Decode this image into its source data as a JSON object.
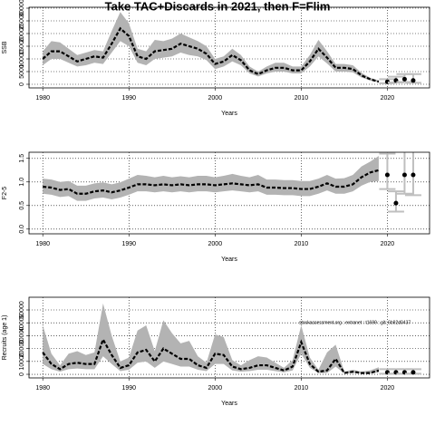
{
  "chart_data": [
    {
      "type": "line",
      "title": "Take TAC+Discards in 2021, then F=Flim",
      "x_label": "Years",
      "y_label": "SSB",
      "xlim": [
        1978.4,
        2024.9
      ],
      "xticks": [
        1980,
        1990,
        2000,
        2010,
        2020
      ],
      "ylim": [
        -1430,
        30360
      ],
      "yticks": [
        0,
        5000,
        10000,
        15000,
        20000,
        25000,
        30000
      ],
      "grid": true,
      "color": "#000000",
      "band_color": "#b3b3b3",
      "x": [
        1980,
        1981,
        1982,
        1983,
        1984,
        1985,
        1986,
        1987,
        1988,
        1989,
        1990,
        1991,
        1992,
        1993,
        1994,
        1995,
        1996,
        1997,
        1998,
        1999,
        2000,
        2001,
        2002,
        2003,
        2004,
        2005,
        2006,
        2007,
        2008,
        2009,
        2010,
        2011,
        2012,
        2013,
        2014,
        2015,
        2016,
        2017,
        2018,
        2019
      ],
      "values": [
        10000,
        13000,
        13000,
        11000,
        9000,
        10000,
        11000,
        10500,
        16000,
        22000,
        19000,
        11000,
        10000,
        13000,
        13500,
        14000,
        16000,
        15000,
        14000,
        12000,
        8000,
        9000,
        11500,
        9500,
        5500,
        4000,
        5500,
        6500,
        6500,
        5500,
        5500,
        9000,
        14000,
        10500,
        6500,
        6500,
        6000,
        3500,
        2000,
        1000
      ],
      "upper": [
        13000,
        17000,
        16500,
        14000,
        11500,
        12500,
        13500,
        13000,
        21000,
        28500,
        24000,
        14000,
        13000,
        17500,
        17000,
        18000,
        20000,
        18500,
        17000,
        15000,
        10000,
        11000,
        14000,
        11500,
        7000,
        5000,
        7000,
        8500,
        8500,
        7000,
        7000,
        11500,
        17500,
        13000,
        8000,
        8000,
        7500,
        4500,
        2600,
        1500
      ],
      "lower": [
        7500,
        10000,
        10000,
        8500,
        7000,
        7500,
        8500,
        8000,
        12500,
        17000,
        15000,
        8500,
        7500,
        10000,
        10500,
        11000,
        12500,
        11500,
        11000,
        9500,
        6000,
        7000,
        9000,
        7500,
        4300,
        3100,
        4300,
        5000,
        5000,
        4300,
        4300,
        7000,
        11000,
        8200,
        5000,
        5000,
        4700,
        2700,
        1500,
        700
      ],
      "points": {
        "x": [
          2020,
          2021,
          2022,
          2023
        ],
        "values": [
          1000,
          1500,
          2000,
          1500
        ],
        "lower": [
          400,
          700,
          900,
          600
        ],
        "upper": [
          2000,
          3000,
          4000,
          4000
        ]
      }
    },
    {
      "type": "line",
      "x_label": "Years",
      "y_label": "F2-5",
      "xlim": [
        1978.4,
        2024.9
      ],
      "xticks": [
        1980,
        1990,
        2000,
        2010,
        2020
      ],
      "ylim": [
        -0.1,
        1.63
      ],
      "yticks": [
        {
          "value": 0,
          "label": "0.0"
        },
        {
          "value": 0.5,
          "label": "0.5"
        },
        {
          "value": 1,
          "label": "1.0"
        },
        {
          "value": 1.5,
          "label": "1.5"
        }
      ],
      "grid": true,
      "color": "#000000",
      "band_color": "#b3b3b3",
      "x": [
        1980,
        1981,
        1982,
        1983,
        1984,
        1985,
        1986,
        1987,
        1988,
        1989,
        1990,
        1991,
        1992,
        1993,
        1994,
        1995,
        1996,
        1997,
        1998,
        1999,
        2000,
        2001,
        2002,
        2003,
        2004,
        2005,
        2006,
        2007,
        2008,
        2009,
        2010,
        2011,
        2012,
        2013,
        2014,
        2015,
        2016,
        2017,
        2018,
        2019
      ],
      "values": [
        0.9,
        0.88,
        0.83,
        0.85,
        0.75,
        0.75,
        0.8,
        0.82,
        0.78,
        0.82,
        0.88,
        0.95,
        0.95,
        0.93,
        0.95,
        0.93,
        0.95,
        0.93,
        0.95,
        0.95,
        0.93,
        0.95,
        0.97,
        0.95,
        0.93,
        0.95,
        0.88,
        0.88,
        0.87,
        0.87,
        0.85,
        0.85,
        0.9,
        0.97,
        0.9,
        0.9,
        0.95,
        1.1,
        1.2,
        1.25
      ],
      "upper": [
        1.07,
        1.05,
        1.0,
        1.02,
        0.92,
        0.92,
        0.97,
        0.99,
        0.95,
        0.99,
        1.07,
        1.15,
        1.13,
        1.1,
        1.13,
        1.1,
        1.12,
        1.1,
        1.13,
        1.13,
        1.1,
        1.13,
        1.17,
        1.13,
        1.1,
        1.15,
        1.05,
        1.05,
        1.04,
        1.04,
        1.02,
        1.02,
        1.07,
        1.15,
        1.07,
        1.08,
        1.15,
        1.33,
        1.43,
        1.55
      ],
      "lower": [
        0.75,
        0.73,
        0.68,
        0.7,
        0.6,
        0.6,
        0.65,
        0.67,
        0.63,
        0.67,
        0.73,
        0.8,
        0.8,
        0.78,
        0.8,
        0.78,
        0.8,
        0.78,
        0.8,
        0.8,
        0.78,
        0.8,
        0.82,
        0.8,
        0.78,
        0.8,
        0.73,
        0.73,
        0.72,
        0.72,
        0.7,
        0.7,
        0.75,
        0.82,
        0.75,
        0.75,
        0.8,
        0.92,
        1.0,
        1.02
      ],
      "points": {
        "x": [
          2020,
          2021,
          2022,
          2023
        ],
        "values": [
          1.15,
          0.55,
          1.15,
          1.15
        ],
        "lower": [
          0.85,
          0.37,
          0.75,
          0.72
        ],
        "upper": [
          1.6,
          0.8,
          1.65,
          1.65
        ]
      }
    },
    {
      "type": "line",
      "x_label": "Years",
      "y_label": "Recruits (age 1)",
      "annotation": "stockassessment.org : extranet : t1699 : git: 6b92d0437",
      "xlim": [
        1978.4,
        2024.9
      ],
      "xticks": [
        1980,
        1990,
        2000,
        2010,
        2020
      ],
      "ylim": [
        -2800,
        59860
      ],
      "yticks": [
        0,
        10000,
        20000,
        30000,
        40000,
        50000
      ],
      "grid": true,
      "color": "#000000",
      "band_color": "#b3b3b3",
      "x": [
        1980,
        1981,
        1982,
        1983,
        1984,
        1985,
        1986,
        1987,
        1988,
        1989,
        1990,
        1991,
        1992,
        1993,
        1994,
        1995,
        1996,
        1997,
        1998,
        1999,
        2000,
        2001,
        2002,
        2003,
        2004,
        2005,
        2006,
        2007,
        2008,
        2009,
        2010,
        2011,
        2012,
        2013,
        2014,
        2015,
        2016,
        2017,
        2018,
        2019
      ],
      "values": [
        17000,
        8000,
        4000,
        8000,
        9000,
        8000,
        8000,
        27000,
        15000,
        5000,
        7000,
        17000,
        19000,
        10000,
        20000,
        16000,
        12000,
        12000,
        7000,
        5000,
        16000,
        15000,
        6000,
        4000,
        5000,
        7000,
        7000,
        5000,
        3000,
        6000,
        25000,
        8000,
        2000,
        3000,
        12000,
        1000,
        2000,
        1000,
        1000,
        3000
      ],
      "upper": [
        38000,
        16000,
        7000,
        16000,
        18000,
        15000,
        17000,
        55000,
        30000,
        10000,
        13000,
        34000,
        38000,
        18000,
        42000,
        32000,
        24000,
        26000,
        14000,
        9000,
        31000,
        29000,
        11000,
        7000,
        11000,
        14000,
        13000,
        9000,
        5000,
        11000,
        38000,
        13000,
        3500,
        17000,
        23000,
        2000,
        3500,
        2000,
        3000,
        5500
      ],
      "lower": [
        8000,
        4000,
        2000,
        4000,
        4500,
        4000,
        4000,
        14000,
        8000,
        2500,
        3500,
        9000,
        10000,
        5000,
        10000,
        8000,
        6000,
        6000,
        3500,
        2500,
        8000,
        8000,
        3000,
        2000,
        2500,
        3500,
        3500,
        2500,
        1500,
        3000,
        16000,
        5000,
        1000,
        1000,
        6000,
        500,
        1000,
        500,
        500,
        1500
      ],
      "points": {
        "x": [
          2020,
          2021,
          2022,
          2023
        ],
        "values": [
          1500,
          1500,
          1500,
          1500
        ],
        "lower": [
          500,
          500,
          500,
          500
        ],
        "upper": [
          4000,
          4000,
          4000,
          4000
        ]
      }
    }
  ]
}
